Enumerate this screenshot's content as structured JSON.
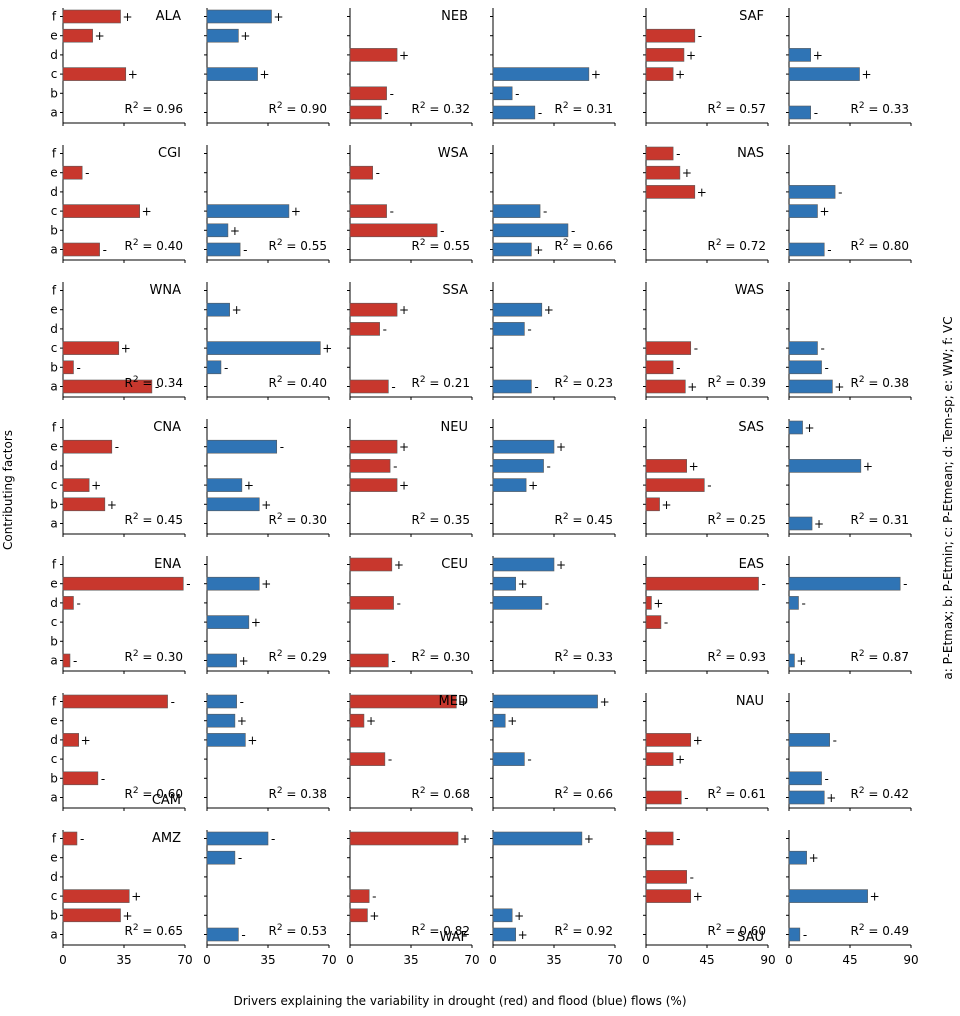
{
  "chart_data": {
    "type": "bar",
    "orientation": "horizontal",
    "title": "",
    "xlabel": "Drivers explaining the variability in drought (red) and flood (blue) flows (%)",
    "ylabel": "Contributing factors",
    "legend_note": "a: P-Etmax; b: P-Etmin; c: P-Etmean; d: Tem-sp; e: WW; f: VC",
    "categories": [
      "a",
      "b",
      "c",
      "d",
      "e",
      "f"
    ],
    "colors": {
      "drought": "#c8372d",
      "flood": "#2f74b5"
    },
    "column_groups": [
      {
        "xlim": [
          0,
          70
        ],
        "ticks": [
          "0",
          "35",
          "70"
        ]
      },
      {
        "xlim": [
          0,
          70
        ],
        "ticks": [
          "0",
          "35",
          "70"
        ]
      },
      {
        "xlim": [
          0,
          90
        ],
        "ticks": [
          "0",
          "45",
          "90"
        ]
      }
    ],
    "rows": [
      [
        {
          "region": "ALA",
          "r2_drought": "0.96",
          "r2_flood": "0.90",
          "drought": [
            null,
            null,
            {
              "v": 36,
              "s": "+"
            },
            null,
            {
              "v": 17,
              "s": "+"
            },
            {
              "v": 33,
              "s": "+"
            }
          ],
          "flood": [
            null,
            null,
            {
              "v": 29,
              "s": "+"
            },
            null,
            {
              "v": 18,
              "s": "+"
            },
            {
              "v": 37,
              "s": "+"
            }
          ]
        },
        {
          "region": "NEB",
          "r2_drought": "0.32",
          "r2_flood": "0.31",
          "drought": [
            {
              "v": 18,
              "s": "-"
            },
            {
              "v": 21,
              "s": "-"
            },
            null,
            {
              "v": 27,
              "s": "+"
            },
            null,
            null
          ],
          "flood": [
            {
              "v": 24,
              "s": "-"
            },
            {
              "v": 11,
              "s": "-"
            },
            {
              "v": 55,
              "s": "+"
            },
            null,
            null,
            null
          ]
        },
        {
          "region": "SAF",
          "r2_drought": "0.57",
          "r2_flood": "0.33",
          "drought": [
            null,
            null,
            {
              "v": 20,
              "s": "+"
            },
            {
              "v": 28,
              "s": "+"
            },
            {
              "v": 36,
              "s": "-"
            },
            null
          ],
          "flood": [
            {
              "v": 16,
              "s": "-"
            },
            null,
            {
              "v": 52,
              "s": "+"
            },
            {
              "v": 16,
              "s": "+"
            },
            null,
            null
          ]
        }
      ],
      [
        {
          "region": "CGI",
          "r2_drought": "0.40",
          "r2_flood": "0.55",
          "drought": [
            {
              "v": 21,
              "s": "-"
            },
            null,
            {
              "v": 44,
              "s": "+"
            },
            null,
            {
              "v": 11,
              "s": "-"
            },
            null
          ],
          "flood": [
            {
              "v": 19,
              "s": "-"
            },
            {
              "v": 12,
              "s": "+"
            },
            {
              "v": 47,
              "s": "+"
            },
            null,
            null,
            null
          ]
        },
        {
          "region": "WSA",
          "r2_drought": "0.55",
          "r2_flood": "0.66",
          "drought": [
            null,
            {
              "v": 50,
              "s": "-"
            },
            {
              "v": 21,
              "s": "-"
            },
            null,
            {
              "v": 13,
              "s": "-"
            },
            null
          ],
          "flood": [
            {
              "v": 22,
              "s": "+"
            },
            {
              "v": 43,
              "s": "-"
            },
            {
              "v": 27,
              "s": "-"
            },
            null,
            null,
            null
          ]
        },
        {
          "region": "NAS",
          "r2_drought": "0.72",
          "r2_flood": "0.80",
          "drought": [
            null,
            null,
            null,
            {
              "v": 36,
              "s": "+"
            },
            {
              "v": 25,
              "s": "+"
            },
            {
              "v": 20,
              "s": "-"
            }
          ],
          "flood": [
            {
              "v": 26,
              "s": "-"
            },
            null,
            {
              "v": 21,
              "s": "+"
            },
            {
              "v": 34,
              "s": "-"
            },
            null,
            null
          ]
        }
      ],
      [
        {
          "region": "WNA",
          "r2_drought": "0.34",
          "r2_flood": "0.40",
          "drought": [
            {
              "v": 51,
              "s": "-"
            },
            {
              "v": 6,
              "s": "-"
            },
            {
              "v": 32,
              "s": "+"
            },
            null,
            null,
            null
          ],
          "flood": [
            null,
            {
              "v": 8,
              "s": "-"
            },
            {
              "v": 65,
              "s": "+"
            },
            null,
            {
              "v": 13,
              "s": "+"
            },
            null
          ]
        },
        {
          "region": "SSA",
          "r2_drought": "0.21",
          "r2_flood": "0.23",
          "drought": [
            {
              "v": 22,
              "s": "-"
            },
            null,
            null,
            {
              "v": 17,
              "s": "-"
            },
            {
              "v": 27,
              "s": "+"
            },
            null
          ],
          "flood": [
            {
              "v": 22,
              "s": "-"
            },
            null,
            null,
            {
              "v": 18,
              "s": "-"
            },
            {
              "v": 28,
              "s": "+"
            },
            null
          ]
        },
        {
          "region": "WAS",
          "r2_drought": "0.39",
          "r2_flood": "0.38",
          "drought": [
            {
              "v": 29,
              "s": "+"
            },
            {
              "v": 20,
              "s": "-"
            },
            {
              "v": 33,
              "s": "-"
            },
            null,
            null,
            null
          ],
          "flood": [
            {
              "v": 32,
              "s": "+"
            },
            {
              "v": 24,
              "s": "-"
            },
            {
              "v": 21,
              "s": "-"
            },
            null,
            null,
            null
          ]
        }
      ],
      [
        {
          "region": "CNA",
          "r2_drought": "0.45",
          "r2_flood": "0.30",
          "drought": [
            null,
            {
              "v": 24,
              "s": "+"
            },
            {
              "v": 15,
              "s": "+"
            },
            null,
            {
              "v": 28,
              "s": "-"
            },
            null
          ],
          "flood": [
            null,
            {
              "v": 30,
              "s": "+"
            },
            {
              "v": 20,
              "s": "+"
            },
            null,
            {
              "v": 40,
              "s": "-"
            },
            null
          ]
        },
        {
          "region": "NEU",
          "r2_drought": "0.35",
          "r2_flood": "0.45",
          "drought": [
            null,
            null,
            {
              "v": 27,
              "s": "+"
            },
            {
              "v": 23,
              "s": "-"
            },
            {
              "v": 27,
              "s": "+"
            },
            null
          ],
          "flood": [
            null,
            null,
            {
              "v": 19,
              "s": "+"
            },
            {
              "v": 29,
              "s": "-"
            },
            {
              "v": 35,
              "s": "+"
            },
            null
          ]
        },
        {
          "region": "SAS",
          "r2_drought": "0.25",
          "r2_flood": "0.31",
          "drought": [
            null,
            {
              "v": 10,
              "s": "+"
            },
            {
              "v": 43,
              "s": "-"
            },
            {
              "v": 30,
              "s": "+"
            },
            null,
            null
          ],
          "flood": [
            {
              "v": 17,
              "s": "+"
            },
            null,
            null,
            {
              "v": 53,
              "s": "+"
            },
            null,
            {
              "v": 10,
              "s": "+"
            }
          ]
        }
      ],
      [
        {
          "region": "ENA",
          "r2_drought": "0.30",
          "r2_flood": "0.29",
          "drought": [
            {
              "v": 4,
              "s": "-"
            },
            null,
            null,
            {
              "v": 6,
              "s": "-"
            },
            {
              "v": 69,
              "s": "-"
            },
            null
          ],
          "flood": [
            {
              "v": 17,
              "s": "+"
            },
            null,
            {
              "v": 24,
              "s": "+"
            },
            null,
            {
              "v": 30,
              "s": "+"
            },
            null
          ]
        },
        {
          "region": "CEU",
          "r2_drought": "0.30",
          "r2_flood": "0.33",
          "drought": [
            {
              "v": 22,
              "s": "-"
            },
            null,
            null,
            {
              "v": 25,
              "s": "-"
            },
            null,
            {
              "v": 24,
              "s": "+"
            }
          ],
          "flood": [
            null,
            null,
            null,
            {
              "v": 28,
              "s": "-"
            },
            {
              "v": 13,
              "s": "+"
            },
            {
              "v": 35,
              "s": "+"
            }
          ]
        },
        {
          "region": "EAS",
          "r2_drought": "0.93",
          "r2_flood": "0.87",
          "drought": [
            null,
            null,
            {
              "v": 11,
              "s": "-"
            },
            {
              "v": 4,
              "s": "+"
            },
            {
              "v": 83,
              "s": "-"
            },
            null
          ],
          "flood": [
            {
              "v": 4,
              "s": "+"
            },
            null,
            null,
            {
              "v": 7,
              "s": "-"
            },
            {
              "v": 82,
              "s": "-"
            },
            null
          ]
        }
      ],
      [
        {
          "region": "CAM",
          "r2_drought": "0.60",
          "r2_flood": "0.38",
          "drought": [
            null,
            {
              "v": 20,
              "s": "-"
            },
            null,
            {
              "v": 9,
              "s": "+"
            },
            null,
            {
              "v": 60,
              "s": "-"
            }
          ],
          "flood": [
            null,
            null,
            null,
            {
              "v": 22,
              "s": "+"
            },
            {
              "v": 16,
              "s": "+"
            },
            {
              "v": 17,
              "s": "-"
            }
          ]
        },
        {
          "region": "MED",
          "r2_drought": "0.68",
          "r2_flood": "0.66",
          "drought": [
            null,
            null,
            {
              "v": 20,
              "s": "-"
            },
            null,
            {
              "v": 8,
              "s": "+"
            },
            {
              "v": 61,
              "s": "+"
            }
          ],
          "flood": [
            null,
            null,
            {
              "v": 18,
              "s": "-"
            },
            null,
            {
              "v": 7,
              "s": "+"
            },
            {
              "v": 60,
              "s": "+"
            }
          ]
        },
        {
          "region": "NAU",
          "r2_drought": "0.61",
          "r2_flood": "0.42",
          "drought": [
            {
              "v": 26,
              "s": "-"
            },
            null,
            {
              "v": 20,
              "s": "+"
            },
            {
              "v": 33,
              "s": "+"
            },
            null,
            null
          ],
          "flood": [
            {
              "v": 26,
              "s": "+"
            },
            {
              "v": 24,
              "s": "-"
            },
            null,
            {
              "v": 30,
              "s": "-"
            },
            null,
            null
          ]
        }
      ],
      [
        {
          "region": "AMZ",
          "r2_drought": "0.65",
          "r2_flood": "0.53",
          "drought": [
            null,
            {
              "v": 33,
              "s": "+"
            },
            {
              "v": 38,
              "s": "+"
            },
            null,
            null,
            {
              "v": 8,
              "s": "-"
            }
          ],
          "flood": [
            {
              "v": 18,
              "s": "-"
            },
            null,
            null,
            null,
            {
              "v": 16,
              "s": "-"
            },
            {
              "v": 35,
              "s": "-"
            }
          ]
        },
        {
          "region": "WAF",
          "r2_drought": "0.82",
          "r2_flood": "0.92",
          "drought": [
            null,
            {
              "v": 10,
              "s": "+"
            },
            {
              "v": 11,
              "s": "-"
            },
            null,
            null,
            {
              "v": 62,
              "s": "+"
            }
          ],
          "flood": [
            {
              "v": 13,
              "s": "+"
            },
            {
              "v": 11,
              "s": "+"
            },
            null,
            null,
            null,
            {
              "v": 51,
              "s": "+"
            }
          ]
        },
        {
          "region": "SAU",
          "r2_drought": "0.60",
          "r2_flood": "0.49",
          "drought": [
            null,
            null,
            {
              "v": 33,
              "s": "+"
            },
            {
              "v": 30,
              "s": "-"
            },
            null,
            {
              "v": 20,
              "s": "-"
            }
          ],
          "flood": [
            {
              "v": 8,
              "s": "-"
            },
            null,
            {
              "v": 58,
              "s": "+"
            },
            null,
            {
              "v": 13,
              "s": "+"
            },
            null
          ]
        }
      ]
    ]
  }
}
